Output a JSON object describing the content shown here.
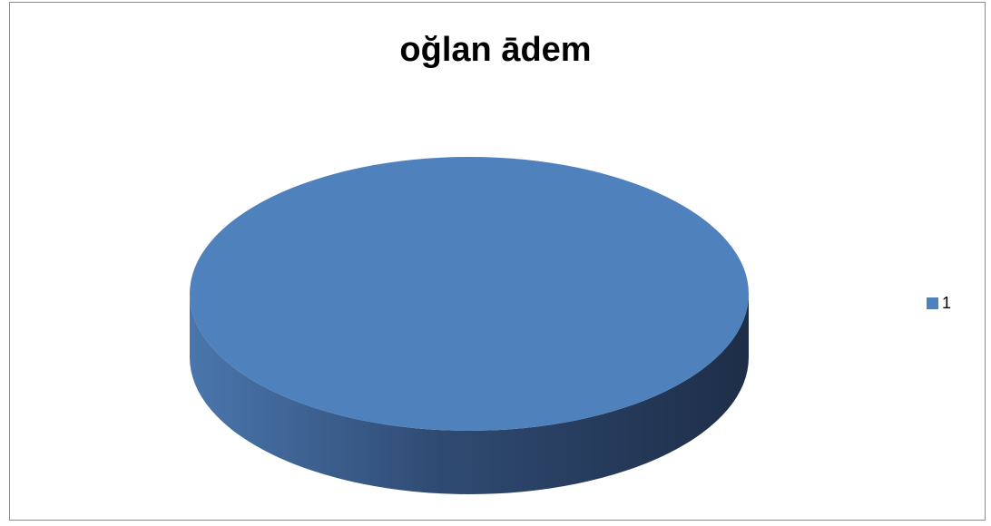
{
  "chart_data": {
    "type": "pie",
    "title": "oğlan ādem",
    "categories": [
      "1"
    ],
    "values": [
      100
    ],
    "three_d": true,
    "legend": {
      "position": "right",
      "entries": [
        "1"
      ]
    },
    "colors": {
      "slice": "#4f81bd",
      "side_light": "#4a76ad",
      "side_dark": "#1e2e48"
    }
  }
}
